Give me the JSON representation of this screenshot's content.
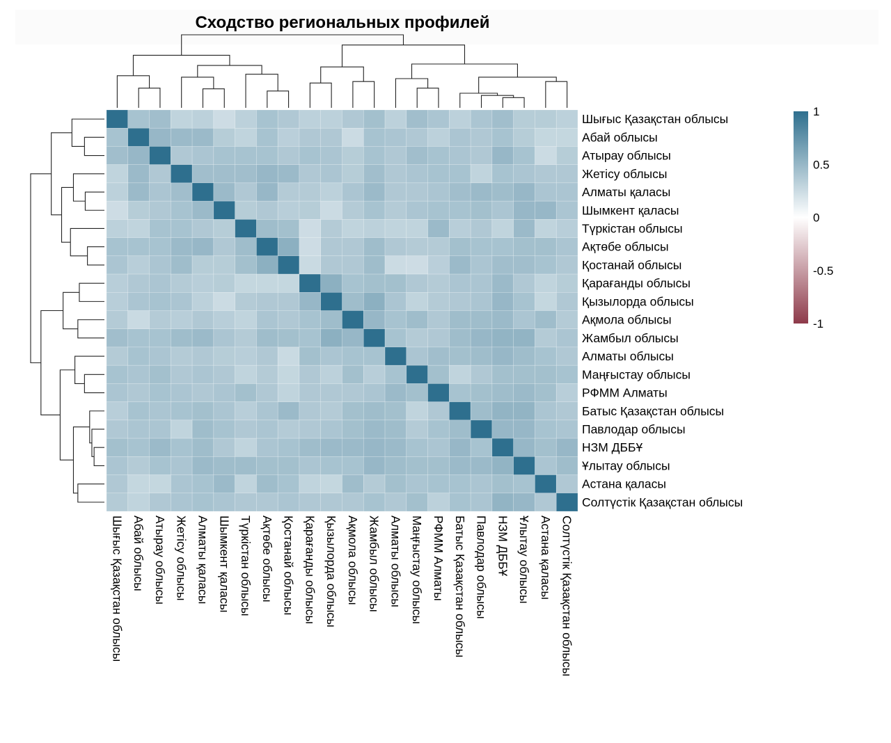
{
  "chart_data": {
    "type": "heatmap",
    "title": "Сходство региональных профилей",
    "xlabel": "",
    "ylabel": "",
    "row_labels": [
      "Шығыс Қазақстан облысы",
      "Абай облысы",
      "Атырау облысы",
      "Жетісу облысы",
      "Алматы қаласы",
      "Шымкент қаласы",
      "Түркістан облысы",
      "Ақтөбе облысы",
      "Қостанай облысы",
      "Қарағанды облысы",
      "Қызылорда облысы",
      "Ақмола облысы",
      "Жамбыл облысы",
      "Алматы облысы",
      "Маңғыстау облысы",
      "РФММ Алматы",
      "Батыс Қазақстан облысы",
      "Павлодар облысы",
      "НЗМ ДББҰ",
      "Ұлытау облысы",
      "Астана қаласы",
      "Солтүстік Қазақстан облысы"
    ],
    "col_labels": [
      "Шығыс Қазақстан облысы",
      "Абай облысы",
      "Атырау облысы",
      "Жетісу облысы",
      "Алматы қаласы",
      "Шымкент қаласы",
      "Түркістан облысы",
      "Ақтөбе облысы",
      "Қостанай облысы",
      "Қарағанды облысы",
      "Қызылорда облысы",
      "Ақмола облысы",
      "Жамбыл облысы",
      "Алматы облысы",
      "Маңғыстау облысы",
      "РФММ Алматы",
      "Батыс Қазақстан облысы",
      "Павлодар облысы",
      "НЗМ ДББҰ",
      "Ұлытау облысы",
      "Астана қаласы",
      "Солтүстік Қазақстан облысы"
    ],
    "values": [
      [
        1.0,
        0.42,
        0.45,
        0.3,
        0.32,
        0.24,
        0.32,
        0.42,
        0.38,
        0.32,
        0.32,
        0.38,
        0.44,
        0.32,
        0.45,
        0.4,
        0.32,
        0.4,
        0.45,
        0.35,
        0.35,
        0.32
      ],
      [
        0.42,
        1.0,
        0.5,
        0.48,
        0.48,
        0.35,
        0.3,
        0.42,
        0.33,
        0.38,
        0.38,
        0.25,
        0.42,
        0.4,
        0.38,
        0.32,
        0.4,
        0.38,
        0.42,
        0.35,
        0.28,
        0.28
      ],
      [
        0.45,
        0.5,
        1.0,
        0.38,
        0.4,
        0.42,
        0.42,
        0.42,
        0.38,
        0.42,
        0.4,
        0.35,
        0.42,
        0.38,
        0.45,
        0.42,
        0.4,
        0.38,
        0.5,
        0.42,
        0.25,
        0.35
      ],
      [
        0.3,
        0.48,
        0.38,
        1.0,
        0.45,
        0.45,
        0.45,
        0.5,
        0.48,
        0.38,
        0.4,
        0.35,
        0.45,
        0.38,
        0.4,
        0.42,
        0.42,
        0.3,
        0.42,
        0.4,
        0.38,
        0.38
      ],
      [
        0.32,
        0.48,
        0.4,
        0.45,
        1.0,
        0.48,
        0.38,
        0.5,
        0.36,
        0.36,
        0.32,
        0.4,
        0.48,
        0.38,
        0.38,
        0.4,
        0.45,
        0.48,
        0.46,
        0.5,
        0.4,
        0.4
      ],
      [
        0.24,
        0.35,
        0.38,
        0.42,
        0.48,
        1.0,
        0.35,
        0.38,
        0.34,
        0.35,
        0.25,
        0.36,
        0.42,
        0.36,
        0.4,
        0.42,
        0.42,
        0.44,
        0.4,
        0.5,
        0.5,
        0.4
      ],
      [
        0.32,
        0.3,
        0.42,
        0.42,
        0.38,
        0.35,
        1.0,
        0.46,
        0.44,
        0.24,
        0.36,
        0.3,
        0.32,
        0.3,
        0.3,
        0.48,
        0.34,
        0.38,
        0.3,
        0.48,
        0.3,
        0.34
      ],
      [
        0.42,
        0.42,
        0.42,
        0.48,
        0.5,
        0.38,
        0.46,
        1.0,
        0.55,
        0.24,
        0.38,
        0.38,
        0.46,
        0.38,
        0.36,
        0.36,
        0.44,
        0.42,
        0.42,
        0.44,
        0.44,
        0.4
      ],
      [
        0.4,
        0.34,
        0.4,
        0.46,
        0.35,
        0.35,
        0.44,
        0.55,
        1.0,
        0.26,
        0.38,
        0.38,
        0.46,
        0.25,
        0.24,
        0.33,
        0.48,
        0.4,
        0.45,
        0.45,
        0.42,
        0.38
      ],
      [
        0.34,
        0.38,
        0.4,
        0.36,
        0.34,
        0.35,
        0.28,
        0.28,
        0.28,
        1.0,
        0.55,
        0.42,
        0.44,
        0.44,
        0.38,
        0.36,
        0.4,
        0.4,
        0.48,
        0.38,
        0.3,
        0.35
      ],
      [
        0.34,
        0.4,
        0.42,
        0.4,
        0.32,
        0.25,
        0.36,
        0.38,
        0.38,
        0.5,
        1.0,
        0.46,
        0.55,
        0.4,
        0.3,
        0.36,
        0.38,
        0.4,
        0.5,
        0.42,
        0.28,
        0.38
      ],
      [
        0.36,
        0.26,
        0.36,
        0.34,
        0.38,
        0.34,
        0.3,
        0.4,
        0.38,
        0.42,
        0.46,
        1.0,
        0.5,
        0.42,
        0.46,
        0.38,
        0.46,
        0.46,
        0.48,
        0.4,
        0.46,
        0.36
      ],
      [
        0.45,
        0.42,
        0.42,
        0.46,
        0.48,
        0.4,
        0.36,
        0.46,
        0.44,
        0.42,
        0.55,
        0.5,
        1.0,
        0.42,
        0.36,
        0.38,
        0.46,
        0.5,
        0.52,
        0.52,
        0.36,
        0.4
      ],
      [
        0.36,
        0.42,
        0.4,
        0.36,
        0.38,
        0.35,
        0.34,
        0.38,
        0.26,
        0.44,
        0.4,
        0.42,
        0.42,
        1.0,
        0.4,
        0.45,
        0.44,
        0.46,
        0.5,
        0.46,
        0.42,
        0.38
      ],
      [
        0.42,
        0.4,
        0.44,
        0.38,
        0.4,
        0.38,
        0.3,
        0.36,
        0.28,
        0.38,
        0.32,
        0.44,
        0.34,
        0.42,
        1.0,
        0.44,
        0.3,
        0.38,
        0.44,
        0.44,
        0.44,
        0.42
      ],
      [
        0.4,
        0.38,
        0.42,
        0.4,
        0.38,
        0.4,
        0.44,
        0.38,
        0.3,
        0.38,
        0.38,
        0.38,
        0.4,
        0.48,
        0.44,
        1.0,
        0.42,
        0.44,
        0.46,
        0.48,
        0.44,
        0.34
      ],
      [
        0.34,
        0.42,
        0.4,
        0.42,
        0.44,
        0.4,
        0.34,
        0.4,
        0.48,
        0.38,
        0.36,
        0.44,
        0.46,
        0.44,
        0.3,
        0.38,
        1.0,
        0.46,
        0.52,
        0.52,
        0.4,
        0.38
      ],
      [
        0.38,
        0.4,
        0.4,
        0.3,
        0.46,
        0.42,
        0.38,
        0.4,
        0.36,
        0.38,
        0.4,
        0.44,
        0.48,
        0.46,
        0.36,
        0.42,
        0.46,
        1.0,
        0.5,
        0.5,
        0.42,
        0.4
      ],
      [
        0.44,
        0.42,
        0.48,
        0.42,
        0.46,
        0.38,
        0.3,
        0.4,
        0.42,
        0.46,
        0.48,
        0.48,
        0.5,
        0.48,
        0.42,
        0.4,
        0.5,
        0.42,
        1.0,
        0.5,
        0.44,
        0.5
      ],
      [
        0.4,
        0.36,
        0.42,
        0.4,
        0.48,
        0.46,
        0.46,
        0.44,
        0.44,
        0.4,
        0.42,
        0.42,
        0.5,
        0.46,
        0.44,
        0.44,
        0.48,
        0.48,
        0.52,
        1.0,
        0.4,
        0.46
      ],
      [
        0.38,
        0.28,
        0.28,
        0.4,
        0.42,
        0.48,
        0.3,
        0.46,
        0.42,
        0.3,
        0.28,
        0.46,
        0.36,
        0.44,
        0.4,
        0.42,
        0.42,
        0.4,
        0.44,
        0.42,
        1.0,
        0.38
      ],
      [
        0.36,
        0.3,
        0.38,
        0.4,
        0.42,
        0.4,
        0.38,
        0.38,
        0.4,
        0.38,
        0.38,
        0.38,
        0.42,
        0.38,
        0.44,
        0.32,
        0.42,
        0.4,
        0.52,
        0.5,
        0.38,
        1.0
      ]
    ],
    "color_scale": {
      "min": -1,
      "max": 1,
      "low_color": "#8E3A4A",
      "mid_color": "#FFFFFF",
      "high_color": "#2E6F8E",
      "ticks": [
        "1",
        "0.5",
        "0",
        "-0.5",
        "-1"
      ],
      "tick_values": [
        1,
        0.5,
        0,
        -0.5,
        -1
      ]
    },
    "row_dendrogram": true,
    "col_dendrogram": true,
    "grid": false,
    "legend_position": "right"
  }
}
